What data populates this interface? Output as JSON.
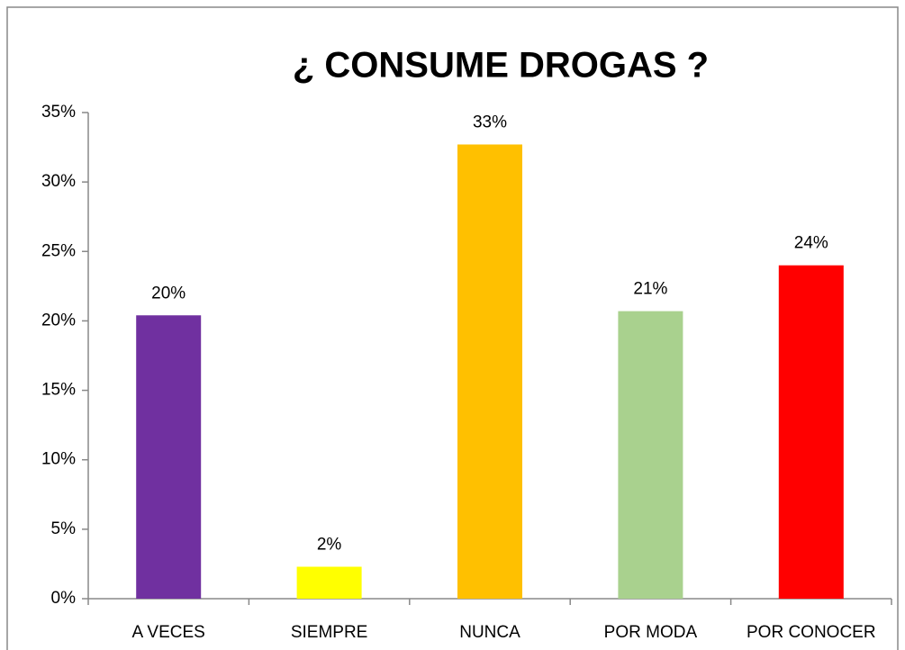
{
  "chart_data": {
    "type": "bar",
    "title": "¿ CONSUME DROGAS ?",
    "categories": [
      "A VECES",
      "SIEMPRE",
      "NUNCA",
      "POR MODA",
      "POR CONOCER"
    ],
    "values": [
      20.4,
      2.3,
      32.7,
      20.7,
      24.0
    ],
    "value_labels": [
      "20%",
      "2%",
      "33%",
      "21%",
      "24%"
    ],
    "colors": [
      "#7030a0",
      "#ffff00",
      "#ffc000",
      "#a9d18e",
      "#ff0000"
    ],
    "ylim": [
      0,
      35
    ],
    "yticks": [
      {
        "value": 0,
        "label": "0%"
      },
      {
        "value": 5,
        "label": "5%"
      },
      {
        "value": 10,
        "label": "10%"
      },
      {
        "value": 15,
        "label": "15%"
      },
      {
        "value": 20,
        "label": "20%"
      },
      {
        "value": 25,
        "label": "25%"
      },
      {
        "value": 30,
        "label": "30%"
      },
      {
        "value": 35,
        "label": "35%"
      }
    ],
    "grid": false
  }
}
